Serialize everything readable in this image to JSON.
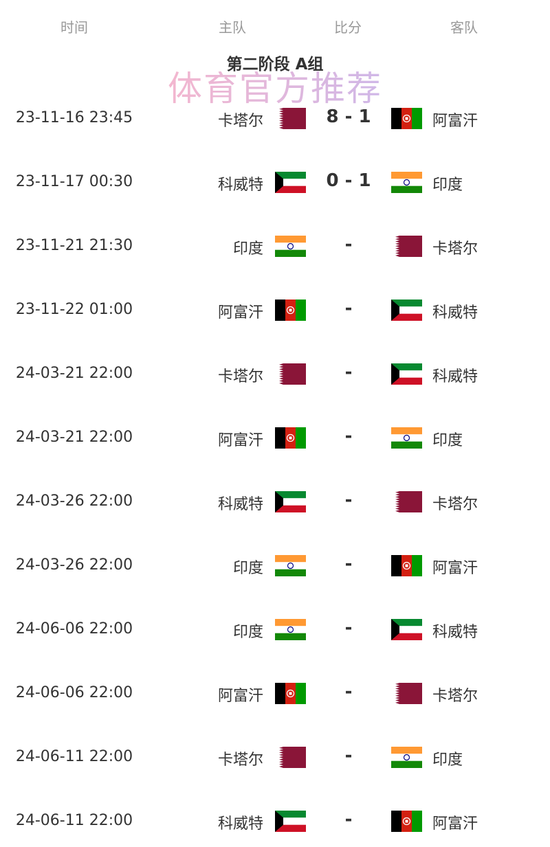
{
  "header": {
    "time": "时间",
    "home": "主队",
    "score": "比分",
    "away": "客队"
  },
  "title": "第二阶段 A组",
  "matches": [
    {
      "time": "23-11-16 23:45",
      "home": "卡塔尔",
      "home_flag": "qatar",
      "score": "8 - 1",
      "away": "阿富汗",
      "away_flag": "afghanistan"
    },
    {
      "time": "23-11-17 00:30",
      "home": "科威特",
      "home_flag": "kuwait",
      "score": "0 - 1",
      "away": "印度",
      "away_flag": "india"
    },
    {
      "time": "23-11-21 21:30",
      "home": "印度",
      "home_flag": "india",
      "score": "-",
      "away": "卡塔尔",
      "away_flag": "qatar"
    },
    {
      "time": "23-11-22 01:00",
      "home": "阿富汗",
      "home_flag": "afghanistan",
      "score": "-",
      "away": "科威特",
      "away_flag": "kuwait"
    },
    {
      "time": "24-03-21 22:00",
      "home": "卡塔尔",
      "home_flag": "qatar",
      "score": "-",
      "away": "科威特",
      "away_flag": "kuwait"
    },
    {
      "time": "24-03-21 22:00",
      "home": "阿富汗",
      "home_flag": "afghanistan",
      "score": "-",
      "away": "印度",
      "away_flag": "india"
    },
    {
      "time": "24-03-26 22:00",
      "home": "科威特",
      "home_flag": "kuwait",
      "score": "-",
      "away": "卡塔尔",
      "away_flag": "qatar"
    },
    {
      "time": "24-03-26 22:00",
      "home": "印度",
      "home_flag": "india",
      "score": "-",
      "away": "阿富汗",
      "away_flag": "afghanistan"
    },
    {
      "time": "24-06-06 22:00",
      "home": "印度",
      "home_flag": "india",
      "score": "-",
      "away": "科威特",
      "away_flag": "kuwait"
    },
    {
      "time": "24-06-06 22:00",
      "home": "阿富汗",
      "home_flag": "afghanistan",
      "score": "-",
      "away": "卡塔尔",
      "away_flag": "qatar"
    },
    {
      "time": "24-06-11 22:00",
      "home": "卡塔尔",
      "home_flag": "qatar",
      "score": "-",
      "away": "印度",
      "away_flag": "india"
    },
    {
      "time": "24-06-11 22:00",
      "home": "科威特",
      "home_flag": "kuwait",
      "score": "-",
      "away": "阿富汗",
      "away_flag": "afghanistan"
    }
  ],
  "watermark": "体育官方推荐",
  "colors": {
    "qatar": "#8a1538",
    "green": "#078930",
    "saffron": "#ff9933",
    "red": "#ce1126"
  }
}
